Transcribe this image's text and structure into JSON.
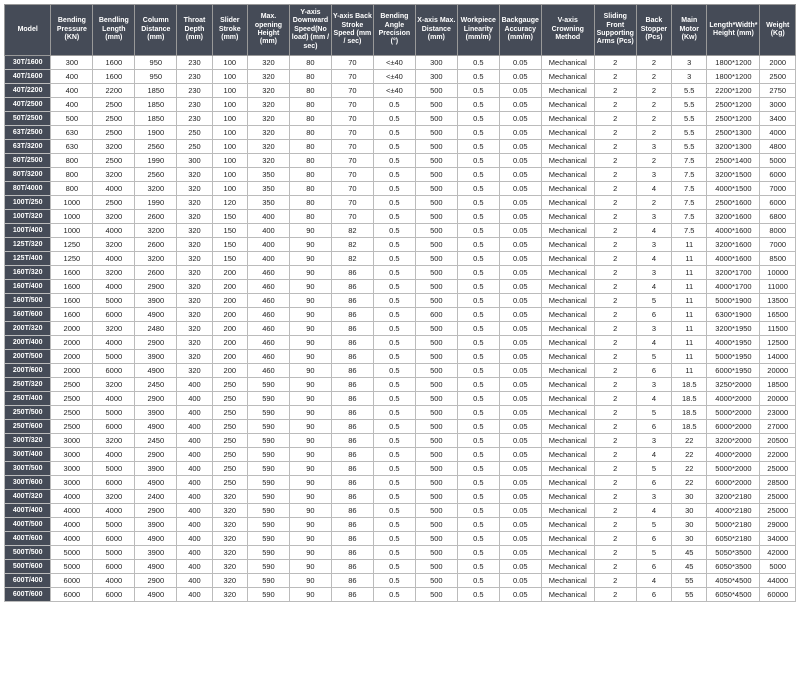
{
  "columns": [
    "Model",
    "Bending Pressure (KN)",
    "Bendling Length (mm)",
    "Column Distance (mm)",
    "Throat Depth (mm)",
    "Slider Stroke (mm)",
    "Max. opening Height (mm)",
    "Y-axis Downward Speed(No load) (mm / sec)",
    "Y-axis Back Stroke Speed (mm / sec)",
    "Bending Angle Precision (°)",
    "X-axis Max. Distance (mm)",
    "Workpiece Linearity (mm/m)",
    "Backgauge Accuracy (mm/m)",
    "V-axis Crowning Method",
    "Sliding Front Supporting Arms (Pcs)",
    "Back Stopper (Pcs)",
    "Main Motor (Kw)",
    "Length*Width*Height (mm)",
    "Weight (Kg)"
  ],
  "rows": [
    [
      "30T/1600",
      "300",
      "1600",
      "950",
      "230",
      "100",
      "320",
      "80",
      "70",
      "<±40",
      "300",
      "0.5",
      "0.05",
      "Mechanical",
      "2",
      "2",
      "3",
      "1800*1200",
      "2000"
    ],
    [
      "40T/1600",
      "400",
      "1600",
      "950",
      "230",
      "100",
      "320",
      "80",
      "70",
      "<±40",
      "300",
      "0.5",
      "0.05",
      "Mechanical",
      "2",
      "2",
      "3",
      "1800*1200",
      "2500"
    ],
    [
      "40T/2200",
      "400",
      "2200",
      "1850",
      "230",
      "100",
      "320",
      "80",
      "70",
      "<±40",
      "500",
      "0.5",
      "0.05",
      "Mechanical",
      "2",
      "2",
      "5.5",
      "2200*1200",
      "2750"
    ],
    [
      "40T/2500",
      "400",
      "2500",
      "1850",
      "230",
      "100",
      "320",
      "80",
      "70",
      "0.5",
      "500",
      "0.5",
      "0.05",
      "Mechanical",
      "2",
      "2",
      "5.5",
      "2500*1200",
      "3000"
    ],
    [
      "50T/2500",
      "500",
      "2500",
      "1850",
      "230",
      "100",
      "320",
      "80",
      "70",
      "0.5",
      "500",
      "0.5",
      "0.05",
      "Mechanical",
      "2",
      "2",
      "5.5",
      "2500*1200",
      "3400"
    ],
    [
      "63T/2500",
      "630",
      "2500",
      "1900",
      "250",
      "100",
      "320",
      "80",
      "70",
      "0.5",
      "500",
      "0.5",
      "0.05",
      "Mechanical",
      "2",
      "2",
      "5.5",
      "2500*1300",
      "4000"
    ],
    [
      "63T/3200",
      "630",
      "3200",
      "2560",
      "250",
      "100",
      "320",
      "80",
      "70",
      "0.5",
      "500",
      "0.5",
      "0.05",
      "Mechanical",
      "2",
      "3",
      "5.5",
      "3200*1300",
      "4800"
    ],
    [
      "80T/2500",
      "800",
      "2500",
      "1990",
      "300",
      "100",
      "320",
      "80",
      "70",
      "0.5",
      "500",
      "0.5",
      "0.05",
      "Mechanical",
      "2",
      "2",
      "7.5",
      "2500*1400",
      "5000"
    ],
    [
      "80T/3200",
      "800",
      "3200",
      "2560",
      "320",
      "100",
      "350",
      "80",
      "70",
      "0.5",
      "500",
      "0.5",
      "0.05",
      "Mechanical",
      "2",
      "3",
      "7.5",
      "3200*1500",
      "6000"
    ],
    [
      "80T/4000",
      "800",
      "4000",
      "3200",
      "320",
      "100",
      "350",
      "80",
      "70",
      "0.5",
      "500",
      "0.5",
      "0.05",
      "Mechanical",
      "2",
      "4",
      "7.5",
      "4000*1500",
      "7000"
    ],
    [
      "100T/250",
      "1000",
      "2500",
      "1990",
      "320",
      "120",
      "350",
      "80",
      "70",
      "0.5",
      "500",
      "0.5",
      "0.05",
      "Mechanical",
      "2",
      "2",
      "7.5",
      "2500*1600",
      "6000"
    ],
    [
      "100T/320",
      "1000",
      "3200",
      "2600",
      "320",
      "150",
      "400",
      "80",
      "70",
      "0.5",
      "500",
      "0.5",
      "0.05",
      "Mechanical",
      "2",
      "3",
      "7.5",
      "3200*1600",
      "6800"
    ],
    [
      "100T/400",
      "1000",
      "4000",
      "3200",
      "320",
      "150",
      "400",
      "90",
      "82",
      "0.5",
      "500",
      "0.5",
      "0.05",
      "Mechanical",
      "2",
      "4",
      "7.5",
      "4000*1600",
      "8000"
    ],
    [
      "125T/320",
      "1250",
      "3200",
      "2600",
      "320",
      "150",
      "400",
      "90",
      "82",
      "0.5",
      "500",
      "0.5",
      "0.05",
      "Mechanical",
      "2",
      "3",
      "11",
      "3200*1600",
      "7000"
    ],
    [
      "125T/400",
      "1250",
      "4000",
      "3200",
      "320",
      "150",
      "400",
      "90",
      "82",
      "0.5",
      "500",
      "0.5",
      "0.05",
      "Mechanical",
      "2",
      "4",
      "11",
      "4000*1600",
      "8500"
    ],
    [
      "160T/320",
      "1600",
      "3200",
      "2600",
      "320",
      "200",
      "460",
      "90",
      "86",
      "0.5",
      "500",
      "0.5",
      "0.05",
      "Mechanical",
      "2",
      "3",
      "11",
      "3200*1700",
      "10000"
    ],
    [
      "160T/400",
      "1600",
      "4000",
      "2900",
      "320",
      "200",
      "460",
      "90",
      "86",
      "0.5",
      "500",
      "0.5",
      "0.05",
      "Mechanical",
      "2",
      "4",
      "11",
      "4000*1700",
      "11000"
    ],
    [
      "160T/500",
      "1600",
      "5000",
      "3900",
      "320",
      "200",
      "460",
      "90",
      "86",
      "0.5",
      "500",
      "0.5",
      "0.05",
      "Mechanical",
      "2",
      "5",
      "11",
      "5000*1900",
      "13500"
    ],
    [
      "160T/600",
      "1600",
      "6000",
      "4900",
      "320",
      "200",
      "460",
      "90",
      "86",
      "0.5",
      "600",
      "0.5",
      "0.05",
      "Mechanical",
      "2",
      "6",
      "11",
      "6300*1900",
      "16500"
    ],
    [
      "200T/320",
      "2000",
      "3200",
      "2480",
      "320",
      "200",
      "460",
      "90",
      "86",
      "0.5",
      "500",
      "0.5",
      "0.05",
      "Mechanical",
      "2",
      "3",
      "11",
      "3200*1950",
      "11500"
    ],
    [
      "200T/400",
      "2000",
      "4000",
      "2900",
      "320",
      "200",
      "460",
      "90",
      "86",
      "0.5",
      "500",
      "0.5",
      "0.05",
      "Mechanical",
      "2",
      "4",
      "11",
      "4000*1950",
      "12500"
    ],
    [
      "200T/500",
      "2000",
      "5000",
      "3900",
      "320",
      "200",
      "460",
      "90",
      "86",
      "0.5",
      "500",
      "0.5",
      "0.05",
      "Mechanical",
      "2",
      "5",
      "11",
      "5000*1950",
      "14000"
    ],
    [
      "200T/600",
      "2000",
      "6000",
      "4900",
      "320",
      "200",
      "460",
      "90",
      "86",
      "0.5",
      "500",
      "0.5",
      "0.05",
      "Mechanical",
      "2",
      "6",
      "11",
      "6000*1950",
      "20000"
    ],
    [
      "250T/320",
      "2500",
      "3200",
      "2450",
      "400",
      "250",
      "590",
      "90",
      "86",
      "0.5",
      "500",
      "0.5",
      "0.05",
      "Mechanical",
      "2",
      "3",
      "18.5",
      "3250*2000",
      "18500"
    ],
    [
      "250T/400",
      "2500",
      "4000",
      "2900",
      "400",
      "250",
      "590",
      "90",
      "86",
      "0.5",
      "500",
      "0.5",
      "0.05",
      "Mechanical",
      "2",
      "4",
      "18.5",
      "4000*2000",
      "20000"
    ],
    [
      "250T/500",
      "2500",
      "5000",
      "3900",
      "400",
      "250",
      "590",
      "90",
      "86",
      "0.5",
      "500",
      "0.5",
      "0.05",
      "Mechanical",
      "2",
      "5",
      "18.5",
      "5000*2000",
      "23000"
    ],
    [
      "250T/600",
      "2500",
      "6000",
      "4900",
      "400",
      "250",
      "590",
      "90",
      "86",
      "0.5",
      "500",
      "0.5",
      "0.05",
      "Mechanical",
      "2",
      "6",
      "18.5",
      "6000*2000",
      "27000"
    ],
    [
      "300T/320",
      "3000",
      "3200",
      "2450",
      "400",
      "250",
      "590",
      "90",
      "86",
      "0.5",
      "500",
      "0.5",
      "0.05",
      "Mechanical",
      "2",
      "3",
      "22",
      "3200*2000",
      "20500"
    ],
    [
      "300T/400",
      "3000",
      "4000",
      "2900",
      "400",
      "250",
      "590",
      "90",
      "86",
      "0.5",
      "500",
      "0.5",
      "0.05",
      "Mechanical",
      "2",
      "4",
      "22",
      "4000*2000",
      "22000"
    ],
    [
      "300T/500",
      "3000",
      "5000",
      "3900",
      "400",
      "250",
      "590",
      "90",
      "86",
      "0.5",
      "500",
      "0.5",
      "0.05",
      "Mechanical",
      "2",
      "5",
      "22",
      "5000*2000",
      "25000"
    ],
    [
      "300T/600",
      "3000",
      "6000",
      "4900",
      "400",
      "250",
      "590",
      "90",
      "86",
      "0.5",
      "500",
      "0.5",
      "0.05",
      "Mechanical",
      "2",
      "6",
      "22",
      "6000*2000",
      "28500"
    ],
    [
      "400T/320",
      "4000",
      "3200",
      "2400",
      "400",
      "320",
      "590",
      "90",
      "86",
      "0.5",
      "500",
      "0.5",
      "0.05",
      "Mechanical",
      "2",
      "3",
      "30",
      "3200*2180",
      "25000"
    ],
    [
      "400T/400",
      "4000",
      "4000",
      "2900",
      "400",
      "320",
      "590",
      "90",
      "86",
      "0.5",
      "500",
      "0.5",
      "0.05",
      "Mechanical",
      "2",
      "4",
      "30",
      "4000*2180",
      "25000"
    ],
    [
      "400T/500",
      "4000",
      "5000",
      "3900",
      "400",
      "320",
      "590",
      "90",
      "86",
      "0.5",
      "500",
      "0.5",
      "0.05",
      "Mechanical",
      "2",
      "5",
      "30",
      "5000*2180",
      "29000"
    ],
    [
      "400T/600",
      "4000",
      "6000",
      "4900",
      "400",
      "320",
      "590",
      "90",
      "86",
      "0.5",
      "500",
      "0.5",
      "0.05",
      "Mechanical",
      "2",
      "6",
      "30",
      "6050*2180",
      "34000"
    ],
    [
      "500T/500",
      "5000",
      "5000",
      "3900",
      "400",
      "320",
      "590",
      "90",
      "86",
      "0.5",
      "500",
      "0.5",
      "0.05",
      "Mechanical",
      "2",
      "5",
      "45",
      "5050*3500",
      "42000"
    ],
    [
      "500T/600",
      "5000",
      "6000",
      "4900",
      "400",
      "320",
      "590",
      "90",
      "86",
      "0.5",
      "500",
      "0.5",
      "0.05",
      "Mechanical",
      "2",
      "6",
      "45",
      "6050*3500",
      "5000"
    ],
    [
      "600T/400",
      "6000",
      "4000",
      "2900",
      "400",
      "320",
      "590",
      "90",
      "86",
      "0.5",
      "500",
      "0.5",
      "0.05",
      "Mechanical",
      "2",
      "4",
      "55",
      "4050*4500",
      "44000"
    ],
    [
      "600T/600",
      "6000",
      "6000",
      "4900",
      "400",
      "320",
      "590",
      "90",
      "86",
      "0.5",
      "500",
      "0.5",
      "0.05",
      "Mechanical",
      "2",
      "6",
      "55",
      "6050*4500",
      "60000"
    ]
  ]
}
